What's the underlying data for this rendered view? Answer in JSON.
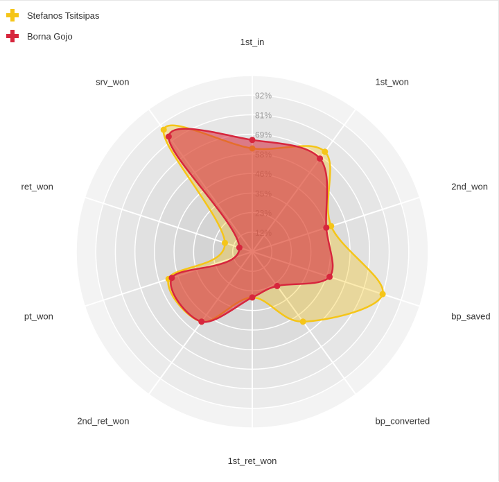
{
  "chart_data": {
    "type": "radar",
    "axes": [
      "1st_in",
      "1st_won",
      "2nd_won",
      "bp_saved",
      "bp_converted",
      "1st_ret_won",
      "2nd_ret_won",
      "pt_won",
      "ret_won",
      "srv_won"
    ],
    "tick_labels": [
      "12%",
      "23%",
      "35%",
      "46%",
      "58%",
      "69%",
      "81%",
      "92%"
    ],
    "rlim": [
      0,
      104
    ],
    "grid": true,
    "legend_position": "top-left",
    "series": [
      {
        "name": "Stefanos Tsitsipas",
        "color": "#f5c518",
        "values": [
          61,
          73,
          49,
          81,
          51,
          27,
          51,
          52,
          17,
          89
        ]
      },
      {
        "name": "Borna Gojo",
        "color": "#d7263d",
        "values": [
          66,
          68,
          46,
          48,
          25,
          27,
          51,
          50,
          8,
          84
        ]
      }
    ]
  }
}
